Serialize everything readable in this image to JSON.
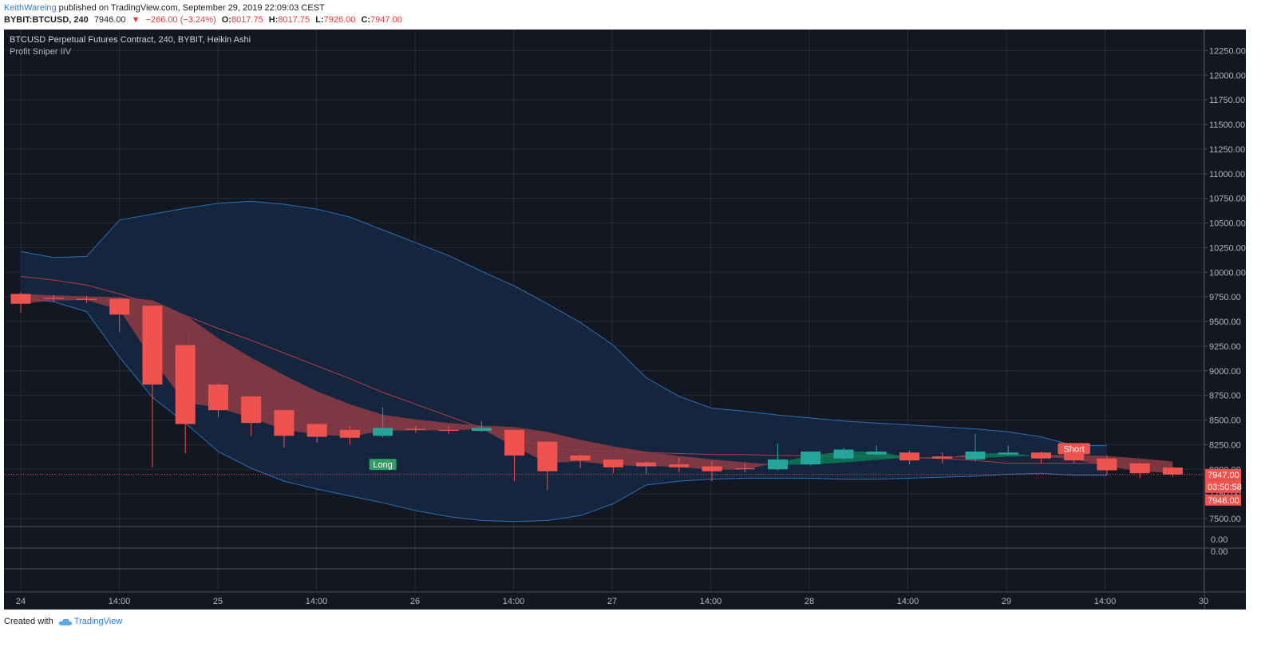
{
  "header": {
    "author": "KeithWareing",
    "published": " published on TradingView.com, September 29, 2019 22:09:03 CEST",
    "symbol": "BYBIT:BTCUSD, 240",
    "last": "7946.00",
    "change": "−266.00 (−3.24%)",
    "o_label": "O:",
    "o_val": "8017.75",
    "h_label": "H:",
    "h_val": "8017.75",
    "l_label": "L:",
    "l_val": "7926.00",
    "c_label": "C:",
    "c_val": "7947.00"
  },
  "legend": {
    "title": "BTCUSD Perpetual Futures Contract, 240, BYBIT, Heikin Ashi",
    "indicator": "Profit Sniper IIV"
  },
  "footer": {
    "created": "Created with",
    "brand": "TradingView"
  },
  "colors": {
    "bg": "#131722",
    "up": "#26a69a",
    "down": "#ef5350",
    "band_fill": "#152640",
    "band_line": "#2a6fb5",
    "ma_line": "#b03a48",
    "cloud_up": "#0b7a53",
    "cloud_down": "#8f3c44"
  },
  "chart_data": {
    "type": "candlestick",
    "chart_style": "Heikin Ashi",
    "title": "BTCUSD Perpetual Futures Contract, 240, BYBIT, Heikin Ashi",
    "indicator": "Profit Sniper IIV",
    "y_ticks": [
      7500,
      7750,
      8000,
      8250,
      8500,
      8750,
      9000,
      9250,
      9500,
      9750,
      10000,
      10250,
      10500,
      10750,
      11000,
      11250,
      11500,
      11750,
      12000,
      12250
    ],
    "y_ticks_label": [
      "7500.00",
      "7750.00",
      "8000.00",
      "8250.00",
      "8500.00",
      "8750.00",
      "9000.00",
      "9250.00",
      "9500.00",
      "9750.00",
      "10000.00",
      "10250.00",
      "10500.00",
      "10750.00",
      "11000.00",
      "11250.00",
      "11500.00",
      "11750.00",
      "12000.00",
      "12250.00"
    ],
    "x_labels": [
      "24",
      "14:00",
      "25",
      "14:00",
      "26",
      "14:00",
      "27",
      "14:00",
      "28",
      "14:00",
      "29",
      "14:00",
      "30"
    ],
    "candles": [
      {
        "o": 9780,
        "h": 9800,
        "l": 9590,
        "c": 9680
      },
      {
        "o": 9740,
        "h": 9770,
        "l": 9700,
        "c": 9730
      },
      {
        "o": 9730,
        "h": 9760,
        "l": 9690,
        "c": 9720
      },
      {
        "o": 9730,
        "h": 9740,
        "l": 9390,
        "c": 9570
      },
      {
        "o": 9660,
        "h": 9660,
        "l": 8020,
        "c": 8860
      },
      {
        "o": 9260,
        "h": 9260,
        "l": 8160,
        "c": 8460
      },
      {
        "o": 8860,
        "h": 8870,
        "l": 8530,
        "c": 8600
      },
      {
        "o": 8740,
        "h": 8740,
        "l": 8340,
        "c": 8470
      },
      {
        "o": 8600,
        "h": 8600,
        "l": 8220,
        "c": 8340
      },
      {
        "o": 8460,
        "h": 8470,
        "l": 8270,
        "c": 8330
      },
      {
        "o": 8400,
        "h": 8440,
        "l": 8250,
        "c": 8320
      },
      {
        "o": 8340,
        "h": 8630,
        "l": 8320,
        "c": 8420
      },
      {
        "o": 8410,
        "h": 8440,
        "l": 8370,
        "c": 8400
      },
      {
        "o": 8400,
        "h": 8440,
        "l": 8360,
        "c": 8390
      },
      {
        "o": 8390,
        "h": 8490,
        "l": 8380,
        "c": 8420
      },
      {
        "o": 8400,
        "h": 8400,
        "l": 7880,
        "c": 8140
      },
      {
        "o": 8280,
        "h": 8280,
        "l": 7790,
        "c": 7980
      },
      {
        "o": 8140,
        "h": 8150,
        "l": 8010,
        "c": 8090
      },
      {
        "o": 8100,
        "h": 8100,
        "l": 7960,
        "c": 8020
      },
      {
        "o": 8070,
        "h": 8080,
        "l": 7950,
        "c": 8030
      },
      {
        "o": 8050,
        "h": 8120,
        "l": 7970,
        "c": 8020
      },
      {
        "o": 8030,
        "h": 8080,
        "l": 7880,
        "c": 7980
      },
      {
        "o": 8010,
        "h": 8070,
        "l": 7970,
        "c": 8000
      },
      {
        "o": 8000,
        "h": 8260,
        "l": 7990,
        "c": 8100
      },
      {
        "o": 8050,
        "h": 8180,
        "l": 8040,
        "c": 8180
      },
      {
        "o": 8110,
        "h": 8220,
        "l": 8100,
        "c": 8200
      },
      {
        "o": 8150,
        "h": 8240,
        "l": 8140,
        "c": 8180
      },
      {
        "o": 8170,
        "h": 8190,
        "l": 8050,
        "c": 8090
      },
      {
        "o": 8130,
        "h": 8170,
        "l": 8060,
        "c": 8110
      },
      {
        "o": 8100,
        "h": 8360,
        "l": 8080,
        "c": 8180
      },
      {
        "o": 8150,
        "h": 8240,
        "l": 8140,
        "c": 8170
      },
      {
        "o": 8170,
        "h": 8180,
        "l": 8060,
        "c": 8110
      },
      {
        "o": 8160,
        "h": 8190,
        "l": 8060,
        "c": 8090
      },
      {
        "o": 8110,
        "h": 8140,
        "l": 7940,
        "c": 7990
      },
      {
        "o": 8060,
        "h": 8070,
        "l": 7910,
        "c": 7960
      },
      {
        "o": 8017.75,
        "h": 8017.75,
        "l": 7926,
        "c": 7947
      }
    ],
    "upper_band": [
      10210,
      10150,
      10160,
      10530,
      10590,
      10650,
      10700,
      10720,
      10690,
      10640,
      10560,
      10430,
      10300,
      10170,
      10010,
      9860,
      9680,
      9490,
      9260,
      8930,
      8740,
      8620,
      8590,
      8550,
      8520,
      8490,
      8470,
      8450,
      8430,
      8410,
      8380,
      8330,
      8240,
      8240
    ],
    "lower_band": [
      9730,
      9700,
      9600,
      9140,
      8730,
      8470,
      8180,
      8010,
      7880,
      7800,
      7730,
      7660,
      7580,
      7520,
      7480,
      7470,
      7480,
      7530,
      7650,
      7840,
      7880,
      7900,
      7910,
      7910,
      7910,
      7900,
      7900,
      7910,
      7920,
      7930,
      7950,
      7960,
      7940,
      7940
    ],
    "ma_line": [
      9960,
      9920,
      9870,
      9780,
      9680,
      9560,
      9430,
      9310,
      9180,
      9050,
      8920,
      8780,
      8660,
      8540,
      8420,
      8310,
      8230,
      8190,
      8180,
      8170,
      8160,
      8150,
      8150,
      8140,
      8140,
      8130,
      8130,
      8120,
      8110,
      8090,
      8060,
      8060,
      8060,
      8060
    ],
    "signals": [
      {
        "label": "Long",
        "candle": 11,
        "price": 8050,
        "color": "#2e9e63"
      },
      {
        "label": "Short",
        "candle": 32,
        "price": 8210,
        "color": "#ef5350"
      }
    ],
    "last_price": "7947.00",
    "countdown": "03:50:58",
    "prev_close_label": "7946.00",
    "lower_pane_ticks": [
      "0.00",
      "0.00"
    ],
    "grid": true,
    "legend_position": "top-left"
  }
}
